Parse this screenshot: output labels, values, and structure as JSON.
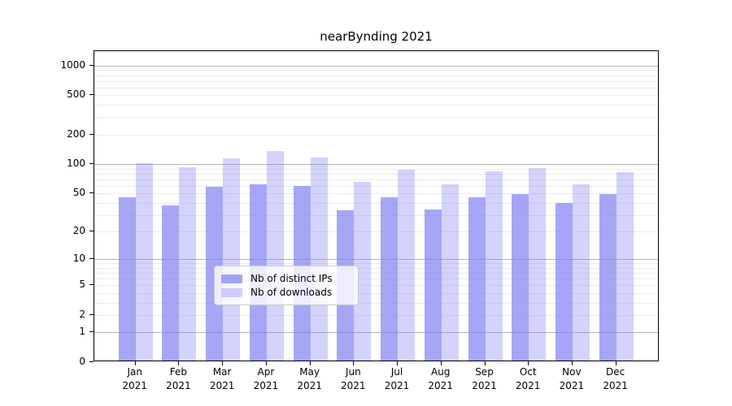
{
  "chart_data": {
    "type": "bar",
    "title": "nearBynding 2021",
    "categories": [
      "Jan",
      "Feb",
      "Mar",
      "Apr",
      "May",
      "Jun",
      "Jul",
      "Aug",
      "Sep",
      "Oct",
      "Nov",
      "Dec"
    ],
    "category_year": "2021",
    "series": [
      {
        "name": "Nb of distinct IPs",
        "color": "#7a7af2",
        "alpha": 0.67,
        "values": [
          44,
          36,
          56,
          60,
          57,
          32,
          44,
          33,
          44,
          47,
          38,
          47
        ]
      },
      {
        "name": "Nb of downloads",
        "color": "#7a7af2",
        "alpha": 0.33,
        "values": [
          99,
          89,
          111,
          130,
          112,
          63,
          84,
          60,
          81,
          87,
          60,
          79
        ]
      }
    ],
    "yscale": "log1p",
    "ylim": [
      0,
      1400
    ],
    "y_ticks": [
      1000,
      500,
      200,
      100,
      50,
      20,
      10,
      5,
      2,
      1,
      0
    ],
    "grid": "on",
    "grid_major_at": [
      1,
      10,
      100,
      1000
    ],
    "legend_position": "bottom-center",
    "xlabel": "",
    "ylabel": ""
  }
}
